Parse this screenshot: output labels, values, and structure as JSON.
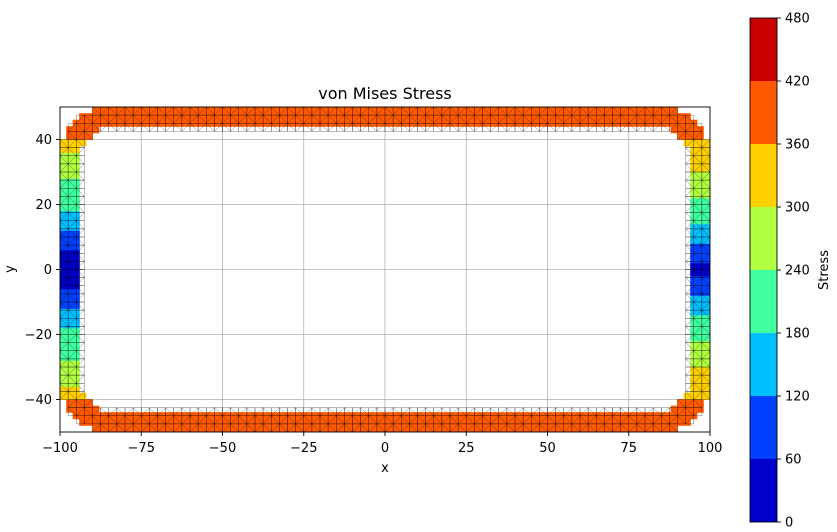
{
  "chart_data": {
    "type": "heatmap",
    "title": "von Mises Stress",
    "xlabel": "x",
    "ylabel": "y",
    "xlim": [
      -100,
      100
    ],
    "ylim": [
      -50,
      50
    ],
    "xticks": [
      -100,
      -75,
      -50,
      -25,
      0,
      25,
      50,
      75,
      100
    ],
    "yticks": [
      -40,
      -20,
      0,
      20,
      40
    ],
    "xtick_labels": [
      "−100",
      "−75",
      "−50",
      "−25",
      "0",
      "25",
      "50",
      "75",
      "100"
    ],
    "ytick_labels": [
      "−40",
      "−20",
      "0",
      "20",
      "40"
    ],
    "grid": true,
    "geometry": {
      "shape": "rounded-rectangle ring",
      "outer_half_width": 100,
      "outer_half_height": 50,
      "wall_thickness": 6,
      "outer_corner_radius": 16
    },
    "mesh": "triangular",
    "stress_profile": {
      "top_bottom_walls": 400,
      "corners": 395,
      "side_walls_y": [
        -40,
        -30,
        -20,
        -10,
        0,
        10,
        20,
        30,
        40
      ],
      "left_wall_stress": [
        340,
        250,
        190,
        90,
        20,
        90,
        190,
        250,
        340
      ],
      "right_wall_stress": [
        360,
        300,
        230,
        150,
        40,
        150,
        230,
        300,
        360
      ]
    },
    "colorbar": {
      "label": "Stress",
      "levels": [
        0,
        60,
        120,
        180,
        240,
        300,
        360,
        420,
        480
      ],
      "tick_labels": [
        "0",
        "60",
        "120",
        "180",
        "240",
        "300",
        "360",
        "420",
        "480"
      ],
      "colors": [
        "#0000c8",
        "#0040ff",
        "#00bfff",
        "#40ff9f",
        "#b0ff40",
        "#ffd000",
        "#ff5a00",
        "#c80000"
      ]
    }
  }
}
